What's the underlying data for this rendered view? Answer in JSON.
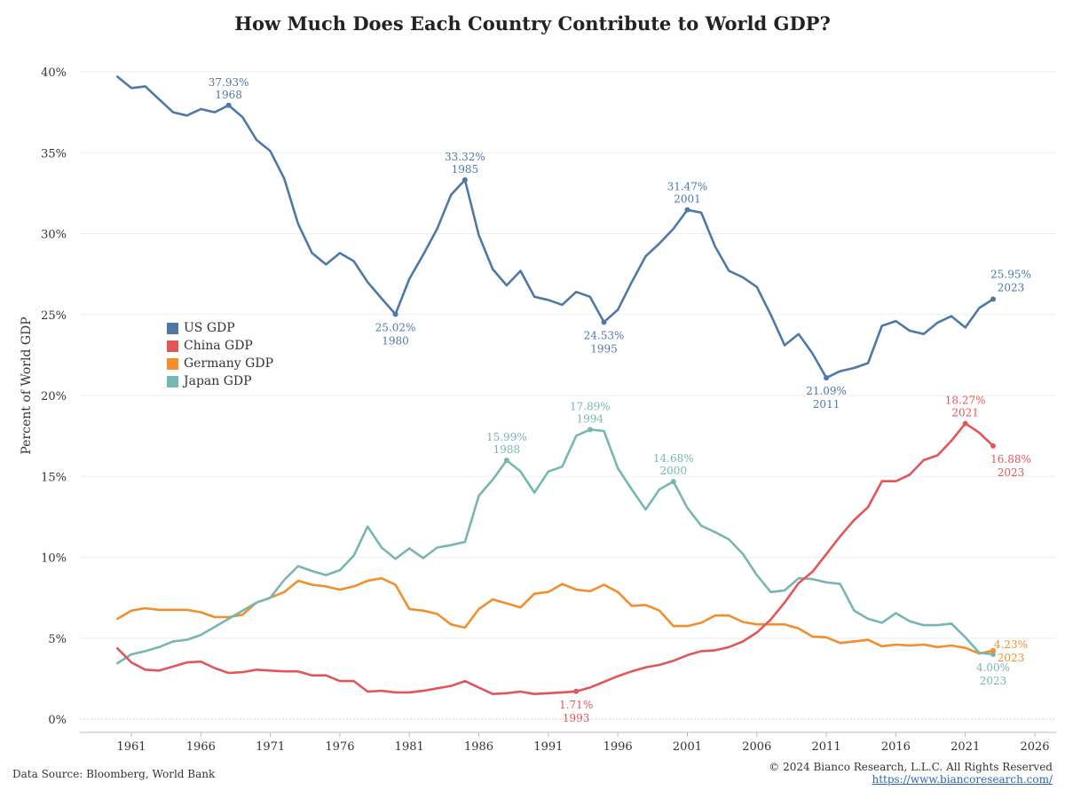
{
  "header": {
    "title": "How Much Does Each Country Contribute to World GDP?"
  },
  "footer": {
    "source": "Data Source: Bloomberg, World Bank",
    "copyright": "© 2024 Bianco Research, L.L.C. All Rights Reserved",
    "link": "https://www.biancoresearch.com/"
  },
  "chart_data": {
    "type": "line",
    "title": "How Much Does Each Country Contribute to World GDP?",
    "xlabel": "",
    "ylabel": "Percent of World GDP",
    "xlim": [
      1956,
      2026
    ],
    "ylim": [
      0,
      40
    ],
    "x_ticks": [
      1961,
      1966,
      1971,
      1976,
      1981,
      1986,
      1991,
      1996,
      2001,
      2006,
      2011,
      2016,
      2021,
      2026
    ],
    "y_ticks": [
      0,
      5,
      10,
      15,
      20,
      25,
      30,
      35,
      40
    ],
    "y_tick_labels": [
      "0%",
      "5%",
      "10%",
      "15%",
      "20%",
      "25%",
      "30%",
      "35%",
      "40%"
    ],
    "grid": true,
    "legend_position": "middle-left",
    "x": [
      1960,
      1961,
      1962,
      1963,
      1964,
      1965,
      1966,
      1967,
      1968,
      1969,
      1970,
      1971,
      1972,
      1973,
      1974,
      1975,
      1976,
      1977,
      1978,
      1979,
      1980,
      1981,
      1982,
      1983,
      1984,
      1985,
      1986,
      1987,
      1988,
      1989,
      1990,
      1991,
      1992,
      1993,
      1994,
      1995,
      1996,
      1997,
      1998,
      1999,
      2000,
      2001,
      2002,
      2003,
      2004,
      2005,
      2006,
      2007,
      2008,
      2009,
      2010,
      2011,
      2012,
      2013,
      2014,
      2015,
      2016,
      2017,
      2018,
      2019,
      2020,
      2021,
      2022,
      2023
    ],
    "series": [
      {
        "name": "US GDP",
        "color": "#4e79a7",
        "values": [
          39.7,
          39.0,
          39.1,
          38.3,
          37.5,
          37.3,
          37.7,
          37.5,
          37.93,
          37.2,
          35.8,
          35.1,
          33.4,
          30.6,
          28.8,
          28.1,
          28.8,
          28.3,
          27.0,
          26.0,
          25.02,
          27.2,
          28.7,
          30.3,
          32.4,
          33.32,
          29.9,
          27.8,
          26.8,
          27.7,
          26.1,
          25.9,
          25.6,
          26.4,
          26.1,
          24.53,
          25.3,
          27.0,
          28.6,
          29.4,
          30.3,
          31.47,
          31.3,
          29.2,
          27.7,
          27.3,
          26.7,
          25.0,
          23.1,
          23.8,
          22.6,
          21.09,
          21.5,
          21.7,
          22.0,
          24.3,
          24.6,
          24.0,
          23.8,
          24.5,
          24.9,
          24.2,
          25.4,
          25.95
        ]
      },
      {
        "name": "China GDP",
        "color": "#e15759",
        "values": [
          4.37,
          3.5,
          3.05,
          3.0,
          3.25,
          3.5,
          3.55,
          3.15,
          2.85,
          2.9,
          3.05,
          3.0,
          2.95,
          2.95,
          2.7,
          2.7,
          2.35,
          2.35,
          1.7,
          1.75,
          1.65,
          1.65,
          1.75,
          1.9,
          2.05,
          2.35,
          1.95,
          1.55,
          1.6,
          1.7,
          1.55,
          1.6,
          1.65,
          1.71,
          1.95,
          2.3,
          2.65,
          2.95,
          3.2,
          3.35,
          3.6,
          3.95,
          4.2,
          4.25,
          4.45,
          4.8,
          5.35,
          6.15,
          7.2,
          8.4,
          9.1,
          10.2,
          11.3,
          12.3,
          13.1,
          14.7,
          14.7,
          15.1,
          16.0,
          16.3,
          17.2,
          18.27,
          17.7,
          16.88
        ]
      },
      {
        "name": "Germany GDP",
        "color": "#f28e2b",
        "values": [
          6.2,
          6.7,
          6.85,
          6.75,
          6.75,
          6.75,
          6.6,
          6.3,
          6.3,
          6.45,
          7.2,
          7.5,
          7.85,
          8.55,
          8.3,
          8.2,
          8.0,
          8.2,
          8.55,
          8.7,
          8.3,
          6.8,
          6.7,
          6.5,
          5.85,
          5.65,
          6.8,
          7.4,
          7.15,
          6.9,
          7.75,
          7.85,
          8.35,
          8.0,
          7.9,
          8.3,
          7.85,
          7.0,
          7.05,
          6.7,
          5.75,
          5.75,
          5.95,
          6.4,
          6.4,
          6.0,
          5.85,
          5.85,
          5.85,
          5.6,
          5.1,
          5.05,
          4.7,
          4.8,
          4.9,
          4.5,
          4.6,
          4.55,
          4.6,
          4.45,
          4.55,
          4.4,
          4.05,
          4.23
        ]
      },
      {
        "name": "Japan GDP",
        "color": "#76b7b2",
        "values": [
          3.45,
          4.0,
          4.2,
          4.45,
          4.8,
          4.9,
          5.2,
          5.7,
          6.2,
          6.7,
          7.2,
          7.5,
          8.6,
          9.45,
          9.15,
          8.9,
          9.2,
          10.1,
          11.9,
          10.6,
          9.9,
          10.55,
          9.95,
          10.6,
          10.75,
          10.95,
          13.8,
          14.8,
          15.99,
          15.3,
          14.0,
          15.3,
          15.6,
          17.5,
          17.89,
          17.8,
          15.5,
          14.2,
          12.95,
          14.2,
          14.68,
          13.05,
          11.95,
          11.55,
          11.1,
          10.2,
          8.9,
          7.85,
          7.95,
          8.7,
          8.65,
          8.45,
          8.35,
          6.7,
          6.2,
          5.95,
          6.55,
          6.05,
          5.8,
          5.8,
          5.9,
          5.05,
          4.1,
          4.0
        ]
      }
    ],
    "annotations": [
      {
        "series": "US GDP",
        "x": 1968,
        "value": "37.93%",
        "label": "1968",
        "pos": "above"
      },
      {
        "series": "US GDP",
        "x": 1980,
        "value": "25.02%",
        "label": "1980",
        "pos": "below"
      },
      {
        "series": "US GDP",
        "x": 1985,
        "value": "33.32%",
        "label": "1985",
        "pos": "above"
      },
      {
        "series": "US GDP",
        "x": 1995,
        "value": "24.53%",
        "label": "1995",
        "pos": "below"
      },
      {
        "series": "US GDP",
        "x": 2001,
        "value": "31.47%",
        "label": "2001",
        "pos": "above"
      },
      {
        "series": "US GDP",
        "x": 2011,
        "value": "21.09%",
        "label": "2011",
        "pos": "below"
      },
      {
        "series": "US GDP",
        "x": 2023,
        "value": "25.95%",
        "label": "2023",
        "pos": "end-above"
      },
      {
        "series": "Japan GDP",
        "x": 1988,
        "value": "15.99%",
        "label": "1988",
        "pos": "above"
      },
      {
        "series": "Japan GDP",
        "x": 1994,
        "value": "17.89%",
        "label": "1994",
        "pos": "above"
      },
      {
        "series": "Japan GDP",
        "x": 2000,
        "value": "14.68%",
        "label": "2000",
        "pos": "above"
      },
      {
        "series": "Japan GDP",
        "x": 2023,
        "value": "4.00%",
        "label": "2023",
        "pos": "below"
      },
      {
        "series": "China GDP",
        "x": 1993,
        "value": "1.71%",
        "label": "1993",
        "pos": "below"
      },
      {
        "series": "China GDP",
        "x": 2021,
        "value": "18.27%",
        "label": "2021",
        "pos": "above"
      },
      {
        "series": "China GDP",
        "x": 2023,
        "value": "16.88%",
        "label": "2023",
        "pos": "end-below"
      },
      {
        "series": "Germany GDP",
        "x": 2023,
        "value": "4.23%",
        "label": "2023",
        "pos": "end-right"
      }
    ]
  }
}
